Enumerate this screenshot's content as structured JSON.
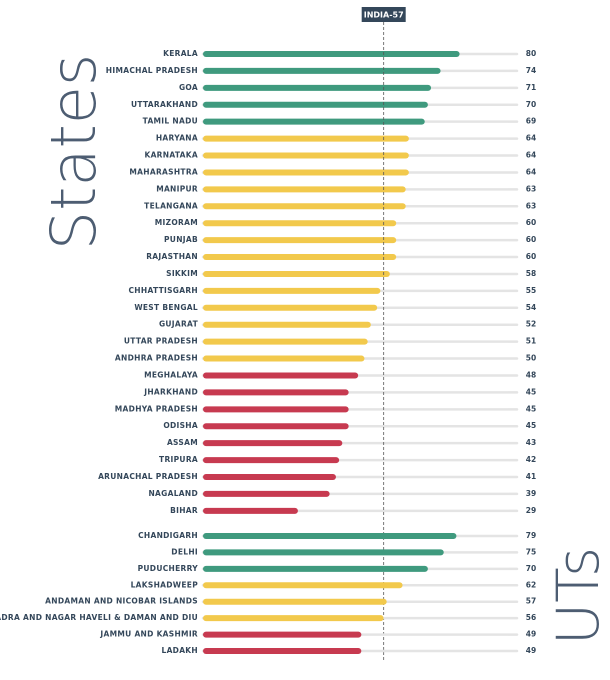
{
  "chart_data": [
    {
      "type": "hbar",
      "title": "States",
      "categories": [
        "KERALA",
        "HIMACHAL PRADESH",
        "GOA",
        "UTTARAKHAND",
        "TAMIL NADU",
        "HARYANA",
        "KARNATAKA",
        "MAHARASHTRA",
        "MANIPUR",
        "TELANGANA",
        "MIZORAM",
        "PUNJAB",
        "RAJASTHAN",
        "SIKKIM",
        "CHHATTISGARH",
        "WEST BENGAL",
        "GUJARAT",
        "UTTAR PRADESH",
        "ANDHRA PRADESH",
        "MEGHALAYA",
        "JHARKHAND",
        "MADHYA PRADESH",
        "ODISHA",
        "ASSAM",
        "TRIPURA",
        "ARUNACHAL PRADESH",
        "NAGALAND",
        "BIHAR"
      ],
      "values": [
        80,
        74,
        71,
        70,
        69,
        64,
        64,
        64,
        63,
        63,
        60,
        60,
        60,
        58,
        55,
        54,
        52,
        51,
        50,
        48,
        45,
        45,
        45,
        43,
        42,
        41,
        39,
        29
      ],
      "colors": [
        "#3f9a7e",
        "#3f9a7e",
        "#3f9a7e",
        "#3f9a7e",
        "#3f9a7e",
        "#f2c94c",
        "#f2c94c",
        "#f2c94c",
        "#f2c94c",
        "#f2c94c",
        "#f2c94c",
        "#f2c94c",
        "#f2c94c",
        "#f2c94c",
        "#f2c94c",
        "#f2c94c",
        "#f2c94c",
        "#f2c94c",
        "#f2c94c",
        "#c73a50",
        "#c73a50",
        "#c73a50",
        "#c73a50",
        "#c73a50",
        "#c73a50",
        "#c73a50",
        "#c73a50",
        "#c73a50"
      ],
      "xlim": [
        0,
        100
      ],
      "reference": {
        "label": "INDIA-57",
        "value": 57
      }
    },
    {
      "type": "hbar",
      "title": "UTs",
      "categories": [
        "CHANDIGARH",
        "DELHI",
        "PUDUCHERRY",
        "LAKSHADWEEP",
        "ANDAMAN AND NICOBAR ISLANDS",
        "DADRA AND NAGAR HAVELI & DAMAN AND DIU",
        "JAMMU AND KASHMIR",
        "LADAKH"
      ],
      "values": [
        79,
        75,
        70,
        62,
        57,
        56,
        49,
        49
      ],
      "colors": [
        "#3f9a7e",
        "#3f9a7e",
        "#3f9a7e",
        "#f2c94c",
        "#f2c94c",
        "#f2c94c",
        "#c73a50",
        "#c73a50"
      ],
      "xlim": [
        0,
        100
      ]
    }
  ]
}
